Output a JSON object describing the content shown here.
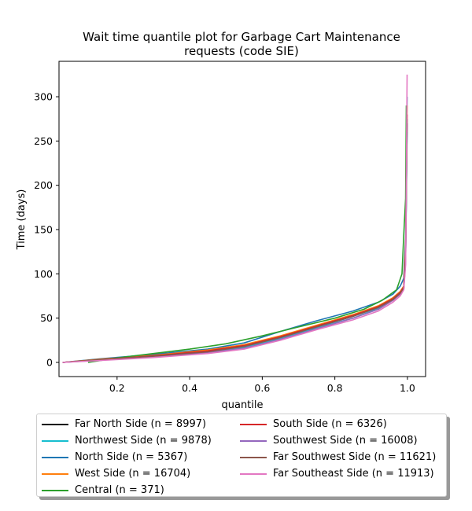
{
  "chart_data": {
    "type": "line",
    "title_line1": "Wait time quantile plot for Garbage Cart Maintenance",
    "title_line2": "requests (code SIE)",
    "xlabel": "quantile",
    "ylabel": "Time (days)",
    "xlim": [
      0.04,
      1.05
    ],
    "ylim": [
      -16,
      340
    ],
    "xticks": [
      0.2,
      0.4,
      0.6,
      0.8,
      1.0
    ],
    "xtick_labels": [
      "0.2",
      "0.4",
      "0.6",
      "0.8",
      "1.0"
    ],
    "yticks": [
      0,
      50,
      100,
      150,
      200,
      250,
      300
    ],
    "ytick_labels": [
      "0",
      "50",
      "100",
      "150",
      "200",
      "250",
      "300"
    ],
    "grid": false,
    "legend_position": "below",
    "series": [
      {
        "name": "Far North Side (n = 8997)",
        "color": "#000000",
        "x": [
          0.05,
          0.15,
          0.3,
          0.45,
          0.55,
          0.65,
          0.75,
          0.85,
          0.92,
          0.96,
          0.98,
          0.99,
          0.995,
          0.999
        ],
        "y": [
          0,
          3,
          7,
          12,
          18,
          28,
          40,
          52,
          63,
          73,
          80,
          86,
          120,
          270
        ]
      },
      {
        "name": "Northwest Side (n = 9878)",
        "color": "#17becf",
        "x": [
          0.05,
          0.15,
          0.3,
          0.45,
          0.55,
          0.65,
          0.75,
          0.85,
          0.92,
          0.96,
          0.98,
          0.99,
          0.995,
          0.999
        ],
        "y": [
          0,
          2.5,
          6,
          11,
          17,
          27,
          39,
          50,
          61,
          71,
          78,
          84,
          115,
          260
        ]
      },
      {
        "name": "North Side (n = 5367)",
        "color": "#1f77b4",
        "x": [
          0.05,
          0.15,
          0.3,
          0.45,
          0.55,
          0.65,
          0.75,
          0.85,
          0.92,
          0.96,
          0.98,
          0.99,
          0.995,
          0.999
        ],
        "y": [
          0,
          4,
          9,
          15,
          22,
          35,
          47,
          58,
          68,
          77,
          86,
          95,
          140,
          300
        ]
      },
      {
        "name": "West Side (n = 16704)",
        "color": "#ff7f0e",
        "x": [
          0.05,
          0.15,
          0.3,
          0.45,
          0.55,
          0.65,
          0.75,
          0.85,
          0.92,
          0.96,
          0.98,
          0.99,
          0.995,
          0.999
        ],
        "y": [
          0,
          3.5,
          8,
          14,
          20,
          30,
          42,
          54,
          64,
          73,
          80,
          86,
          130,
          290
        ]
      },
      {
        "name": "Central (n = 371)",
        "color": "#2ca02c",
        "x": [
          0.12,
          0.2,
          0.3,
          0.4,
          0.5,
          0.6,
          0.7,
          0.8,
          0.88,
          0.93,
          0.97,
          0.985,
          0.99,
          0.995,
          0.997
        ],
        "y": [
          0,
          5,
          10,
          15,
          21,
          30,
          40,
          50,
          60,
          70,
          82,
          100,
          145,
          185,
          290
        ]
      },
      {
        "name": "South Side (n = 6326)",
        "color": "#d62728",
        "x": [
          0.05,
          0.15,
          0.3,
          0.45,
          0.55,
          0.65,
          0.75,
          0.85,
          0.92,
          0.96,
          0.98,
          0.99,
          0.995,
          0.999
        ],
        "y": [
          0,
          3,
          7.5,
          13,
          19,
          29,
          41,
          53,
          63,
          72,
          79,
          85,
          125,
          280
        ]
      },
      {
        "name": "Southwest Side (n = 16008)",
        "color": "#9467bd",
        "x": [
          0.05,
          0.15,
          0.3,
          0.45,
          0.55,
          0.65,
          0.75,
          0.85,
          0.92,
          0.96,
          0.98,
          0.99,
          0.995,
          0.999
        ],
        "y": [
          0,
          2.5,
          6,
          11,
          16,
          26,
          38,
          50,
          60,
          70,
          77,
          83,
          115,
          270
        ]
      },
      {
        "name": "Far Southwest Side (n = 11621)",
        "color": "#8c564b",
        "x": [
          0.05,
          0.15,
          0.3,
          0.45,
          0.55,
          0.65,
          0.75,
          0.85,
          0.92,
          0.96,
          0.98,
          0.99,
          0.995,
          0.999
        ],
        "y": [
          0,
          3,
          7,
          12,
          18,
          28,
          40,
          52,
          62,
          71,
          78,
          84,
          120,
          275
        ]
      },
      {
        "name": "Far Southeast Side (n = 11913)",
        "color": "#e377c2",
        "x": [
          0.05,
          0.15,
          0.3,
          0.45,
          0.55,
          0.65,
          0.75,
          0.85,
          0.92,
          0.96,
          0.98,
          0.99,
          0.995,
          0.999
        ],
        "y": [
          0,
          2,
          5.5,
          10,
          15,
          25,
          37,
          48,
          58,
          68,
          75,
          82,
          110,
          325
        ]
      }
    ]
  }
}
